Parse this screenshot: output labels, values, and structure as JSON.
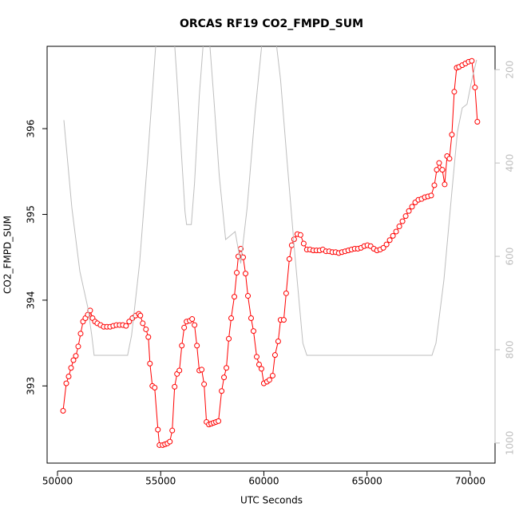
{
  "chart_data": {
    "type": "line",
    "title": "ORCAS RF19 CO2_FMPD_SUM",
    "x_label": "UTC Seconds",
    "y_label": "CO2_FMPD_SUM",
    "xlim": [
      49496,
      71204
    ],
    "xticks": [
      50000,
      55000,
      60000,
      65000,
      70000
    ],
    "ylim": [
      392.1,
      396.96
    ],
    "yticks": [
      393,
      394,
      395,
      396
    ],
    "y2lim": [
      1043,
      150
    ],
    "y2ticks": [
      200,
      400,
      600,
      800,
      1000
    ],
    "y2_color": "#bebebe",
    "series": [
      {
        "color": "#ff0000",
        "markers": true,
        "axis": "y",
        "x": [
          50270,
          50425,
          50540,
          50656,
          50772,
          50888,
          51004,
          51120,
          51236,
          51351,
          51467,
          51583,
          51699,
          51815,
          51931,
          52085,
          52239,
          52394,
          52548,
          52703,
          52857,
          53012,
          53166,
          53320,
          53475,
          53629,
          53784,
          53938,
          54015,
          54131,
          54286,
          54402,
          54479,
          54595,
          54710,
          54865,
          54942,
          55097,
          55212,
          55328,
          55444,
          55560,
          55676,
          55792,
          55907,
          56023,
          56139,
          56255,
          56409,
          56525,
          56641,
          56757,
          56873,
          56988,
          57104,
          57220,
          57336,
          57452,
          57568,
          57683,
          57799,
          57954,
          58069,
          58185,
          58301,
          58417,
          58571,
          58687,
          58764,
          58880,
          58996,
          59112,
          59228,
          59382,
          59498,
          59653,
          59768,
          59884,
          60000,
          60154,
          60270,
          60425,
          60541,
          60695,
          60811,
          60965,
          61081,
          61236,
          61351,
          61467,
          61622,
          61776,
          61931,
          62085,
          62239,
          62394,
          62548,
          62703,
          62857,
          63012,
          63166,
          63320,
          63475,
          63629,
          63784,
          63938,
          64093,
          64247,
          64402,
          64556,
          64710,
          64865,
          65019,
          65174,
          65328,
          65483,
          65637,
          65792,
          65946,
          66100,
          66255,
          66409,
          66564,
          66718,
          66873,
          67027,
          67181,
          67336,
          67490,
          67645,
          67799,
          67954,
          68108,
          68263,
          68378,
          68494,
          68649,
          68764,
          68880,
          68996,
          69112,
          69228,
          69344,
          69459,
          69614,
          69768,
          69923,
          70077,
          70232,
          70347
        ],
        "values": [
          392.71,
          393.03,
          393.11,
          393.21,
          393.3,
          393.35,
          393.46,
          393.61,
          393.75,
          393.79,
          393.83,
          393.88,
          393.79,
          393.75,
          393.73,
          393.71,
          393.69,
          393.69,
          393.69,
          393.7,
          393.71,
          393.71,
          393.71,
          393.7,
          393.75,
          393.79,
          393.82,
          393.84,
          393.82,
          393.73,
          393.66,
          393.57,
          393.26,
          393.0,
          392.98,
          392.49,
          392.31,
          392.31,
          392.32,
          392.33,
          392.35,
          392.48,
          392.99,
          393.14,
          393.18,
          393.47,
          393.68,
          393.75,
          393.76,
          393.78,
          393.71,
          393.47,
          393.18,
          393.19,
          393.02,
          392.58,
          392.55,
          392.56,
          392.57,
          392.58,
          392.59,
          392.94,
          393.1,
          393.21,
          393.55,
          393.79,
          394.04,
          394.32,
          394.51,
          394.6,
          394.5,
          394.31,
          394.05,
          393.79,
          393.64,
          393.34,
          393.25,
          393.2,
          393.03,
          393.05,
          393.07,
          393.12,
          393.36,
          393.52,
          393.77,
          393.77,
          394.08,
          394.48,
          394.64,
          394.71,
          394.77,
          394.76,
          394.66,
          394.59,
          394.59,
          394.58,
          394.58,
          394.58,
          394.59,
          394.57,
          394.57,
          394.56,
          394.56,
          394.55,
          394.56,
          394.57,
          394.58,
          394.59,
          394.6,
          394.6,
          394.61,
          394.63,
          394.64,
          394.63,
          394.6,
          394.58,
          394.59,
          394.61,
          394.65,
          394.7,
          394.75,
          394.8,
          394.86,
          394.92,
          394.98,
          395.04,
          395.09,
          395.14,
          395.17,
          395.18,
          395.2,
          395.21,
          395.22,
          395.34,
          395.52,
          395.6,
          395.52,
          395.35,
          395.68,
          395.65,
          395.93,
          396.43,
          396.71,
          396.72,
          396.74,
          396.76,
          396.78,
          396.79,
          396.48,
          396.08
        ]
      },
      {
        "color": "#bebebe",
        "markers": false,
        "axis": "y2",
        "x": [
          50309,
          50695,
          51081,
          51467,
          51660,
          51776,
          52046,
          53398,
          53591,
          53977,
          54363,
          54749,
          54942,
          55637,
          55792,
          56023,
          56178,
          56255,
          56486,
          56641,
          56873,
          57104,
          57336,
          57568,
          57838,
          58147,
          58610,
          58880,
          59189,
          59575,
          59961,
          60541,
          60811,
          61120,
          61506,
          61892,
          62085,
          68147,
          68340,
          68726,
          69112,
          69382,
          69614,
          69845,
          70077,
          70309
        ],
        "values": [
          308,
          496,
          632,
          709,
          769,
          812,
          812,
          812,
          769,
          615,
          393,
          154,
          103,
          120,
          222,
          393,
          504,
          532,
          532,
          444,
          256,
          120,
          120,
          256,
          427,
          564,
          547,
          615,
          496,
          291,
          120,
          120,
          222,
          393,
          598,
          786,
          812,
          812,
          786,
          650,
          462,
          333,
          282,
          274,
          222,
          179
        ]
      }
    ]
  }
}
